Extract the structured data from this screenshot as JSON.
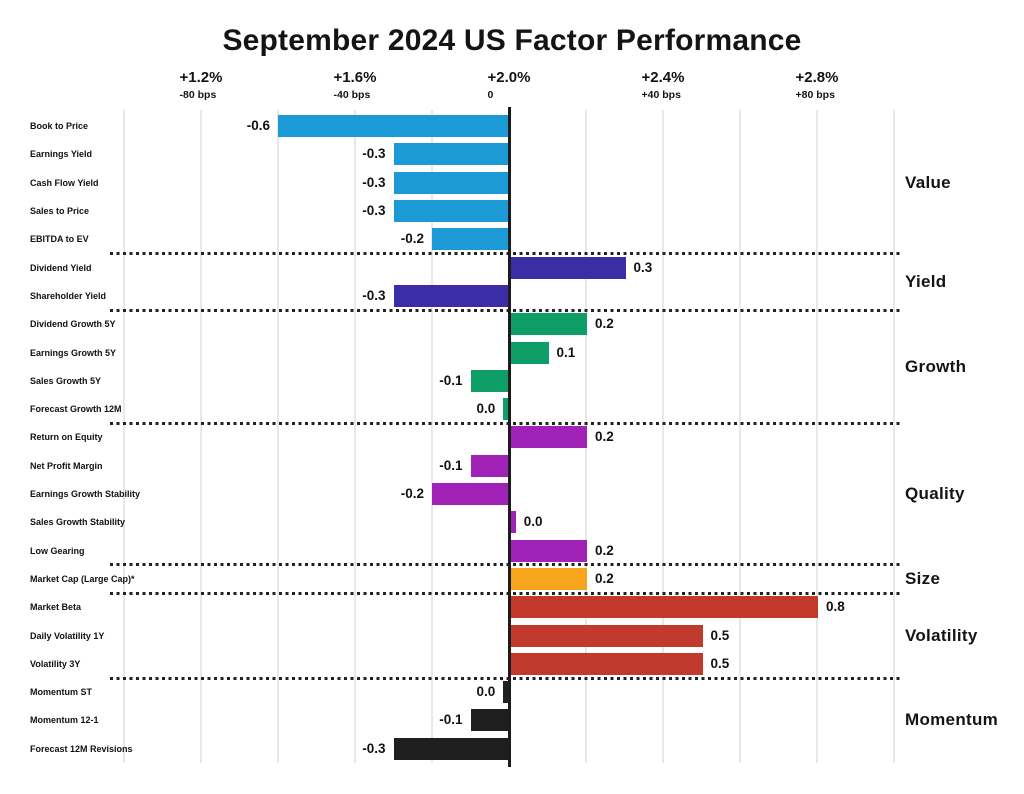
{
  "title": "September 2024 US Factor Performance",
  "chart_data": {
    "type": "bar",
    "orientation": "horizontal",
    "title": "September 2024 US Factor Performance",
    "axis": {
      "position": "top",
      "grid": true,
      "range": [
        -1.0,
        1.0
      ],
      "gridline_step": 0.2,
      "ticks": [
        {
          "pct": "+1.2%",
          "bps": "-80 bps",
          "value": -0.8
        },
        {
          "pct": "+1.6%",
          "bps": "-40 bps",
          "value": -0.4
        },
        {
          "pct": "+2.0%",
          "bps": "0",
          "value": 0.0
        },
        {
          "pct": "+2.4%",
          "bps": "+40 bps",
          "value": 0.4
        },
        {
          "pct": "+2.8%",
          "bps": "+80 bps",
          "value": 0.8
        }
      ]
    },
    "groups": [
      {
        "name": "Value",
        "color": "#1b9ad6",
        "factors": [
          {
            "label": "Book to Price",
            "value": -0.6,
            "display": "-0.6"
          },
          {
            "label": "Earnings Yield",
            "value": -0.3,
            "display": "-0.3"
          },
          {
            "label": "Cash Flow Yield",
            "value": -0.3,
            "display": "-0.3"
          },
          {
            "label": "Sales to Price",
            "value": -0.3,
            "display": "-0.3"
          },
          {
            "label": "EBITDA to EV",
            "value": -0.2,
            "display": "-0.2"
          }
        ]
      },
      {
        "name": "Yield",
        "color": "#3a2da6",
        "factors": [
          {
            "label": "Dividend Yield",
            "value": 0.3,
            "display": "0.3"
          },
          {
            "label": "Shareholder Yield",
            "value": -0.3,
            "display": "-0.3"
          }
        ]
      },
      {
        "name": "Growth",
        "color": "#0f9d68",
        "factors": [
          {
            "label": "Dividend Growth 5Y",
            "value": 0.2,
            "display": "0.2"
          },
          {
            "label": "Earnings Growth 5Y",
            "value": 0.1,
            "display": "0.1"
          },
          {
            "label": "Sales Growth 5Y",
            "value": -0.1,
            "display": "-0.1"
          },
          {
            "label": "Forecast Growth 12M",
            "value": -0.015,
            "display": "0.0"
          }
        ]
      },
      {
        "name": "Quality",
        "color": "#a122b6",
        "factors": [
          {
            "label": "Return on Equity",
            "value": 0.2,
            "display": "0.2"
          },
          {
            "label": "Net Profit Margin",
            "value": -0.1,
            "display": "-0.1"
          },
          {
            "label": "Earnings Growth Stability",
            "value": -0.2,
            "display": "-0.2"
          },
          {
            "label": "Sales Growth Stability",
            "value": 0.015,
            "display": "0.0"
          },
          {
            "label": "Low Gearing",
            "value": 0.2,
            "display": "0.2"
          }
        ]
      },
      {
        "name": "Size",
        "color": "#f7a51c",
        "factors": [
          {
            "label": "Market Cap (Large Cap)*",
            "value": 0.2,
            "display": "0.2"
          }
        ]
      },
      {
        "name": "Volatility",
        "color": "#c13a2b",
        "factors": [
          {
            "label": "Market Beta",
            "value": 0.8,
            "display": "0.8"
          },
          {
            "label": "Daily Volatility 1Y",
            "value": 0.5,
            "display": "0.5"
          },
          {
            "label": "Volatility 3Y",
            "value": 0.5,
            "display": "0.5"
          }
        ]
      },
      {
        "name": "Momentum",
        "color": "#1f1f1f",
        "factors": [
          {
            "label": "Momentum ST",
            "value": -0.015,
            "display": "0.0"
          },
          {
            "label": "Momentum 12-1",
            "value": -0.1,
            "display": "-0.1"
          },
          {
            "label": "Forecast 12M Revisions",
            "value": -0.3,
            "display": "-0.3"
          }
        ]
      }
    ]
  }
}
